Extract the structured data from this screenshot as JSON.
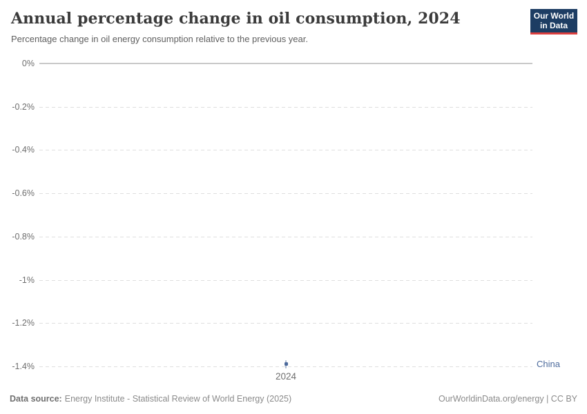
{
  "header": {
    "title": "Annual percentage change in oil consumption, 2024",
    "subtitle": "Percentage change in oil energy consumption relative to the previous year.",
    "logo": {
      "line1": "Our World",
      "line2": "in Data"
    }
  },
  "chart_data": {
    "type": "scatter",
    "title": "Annual percentage change in oil consumption, 2024",
    "series": [
      {
        "name": "China",
        "points": [
          {
            "x": 2024,
            "y": -1.39
          }
        ],
        "color": "#4c6a9c"
      }
    ],
    "x_ticks": [
      "2024"
    ],
    "y_ticks": [
      "0%",
      "-0.2%",
      "-0.4%",
      "-0.6%",
      "-0.8%",
      "-1%",
      "-1.2%",
      "-1.4%"
    ],
    "ylim": [
      -1.4,
      0
    ],
    "xlabel": "",
    "ylabel": "",
    "grid": "horizontal-dashed",
    "legend_position": "inline-right-of-point",
    "zero_line": "solid"
  },
  "colors": {
    "accent_blue": "#4c6a9c",
    "logo_background": "#1d3d63",
    "logo_bar": "#dc3f3f",
    "gridline": "#dedede",
    "zero_line": "#c9c9c9"
  },
  "footer": {
    "source_label": "Data source:",
    "source_text": "Energy Institute - Statistical Review of World Energy (2025)",
    "right_text": "OurWorldinData.org/energy | CC BY"
  }
}
